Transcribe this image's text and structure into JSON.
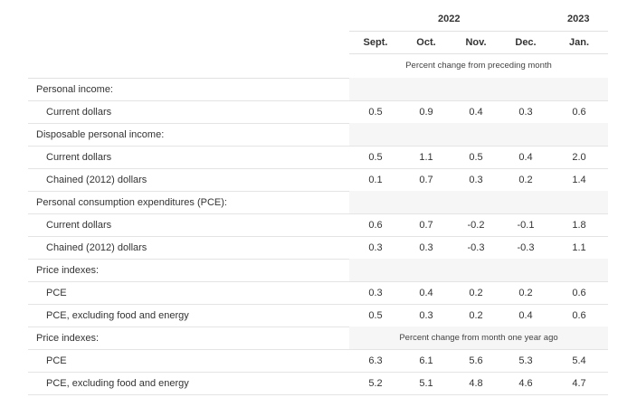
{
  "header": {
    "year_2022": "2022",
    "year_2023": "2023",
    "months": [
      "Sept.",
      "Oct.",
      "Nov.",
      "Dec.",
      "Jan."
    ],
    "note_monthly": "Percent change from preceding month",
    "note_yearly": "Percent change from month one year ago"
  },
  "rows": [
    {
      "label": "Personal income:",
      "type": "heading"
    },
    {
      "label": "Current dollars",
      "type": "data",
      "values": [
        "0.5",
        "0.9",
        "0.4",
        "0.3",
        "0.6"
      ]
    },
    {
      "label": "Disposable personal income:",
      "type": "heading"
    },
    {
      "label": "Current dollars",
      "type": "data",
      "values": [
        "0.5",
        "1.1",
        "0.5",
        "0.4",
        "2.0"
      ]
    },
    {
      "label": "Chained (2012) dollars",
      "type": "data",
      "values": [
        "0.1",
        "0.7",
        "0.3",
        "0.2",
        "1.4"
      ]
    },
    {
      "label": "Personal consumption expenditures (PCE):",
      "type": "heading"
    },
    {
      "label": "Current dollars",
      "type": "data",
      "values": [
        "0.6",
        "0.7",
        "-0.2",
        "-0.1",
        "1.8"
      ]
    },
    {
      "label": "Chained (2012) dollars",
      "type": "data",
      "values": [
        "0.3",
        "0.3",
        "-0.3",
        "-0.3",
        "1.1"
      ]
    },
    {
      "label": "Price indexes:",
      "type": "heading"
    },
    {
      "label": "PCE",
      "type": "data",
      "values": [
        "0.3",
        "0.4",
        "0.2",
        "0.2",
        "0.6"
      ]
    },
    {
      "label": "PCE, excluding food and energy",
      "type": "data",
      "values": [
        "0.5",
        "0.3",
        "0.2",
        "0.4",
        "0.6"
      ]
    },
    {
      "label": "Price indexes:",
      "type": "heading-note"
    },
    {
      "label": "PCE",
      "type": "data",
      "values": [
        "6.3",
        "6.1",
        "5.6",
        "5.3",
        "5.4"
      ]
    },
    {
      "label": "PCE, excluding food and energy",
      "type": "data",
      "values": [
        "5.2",
        "5.1",
        "4.8",
        "4.6",
        "4.7"
      ]
    }
  ]
}
